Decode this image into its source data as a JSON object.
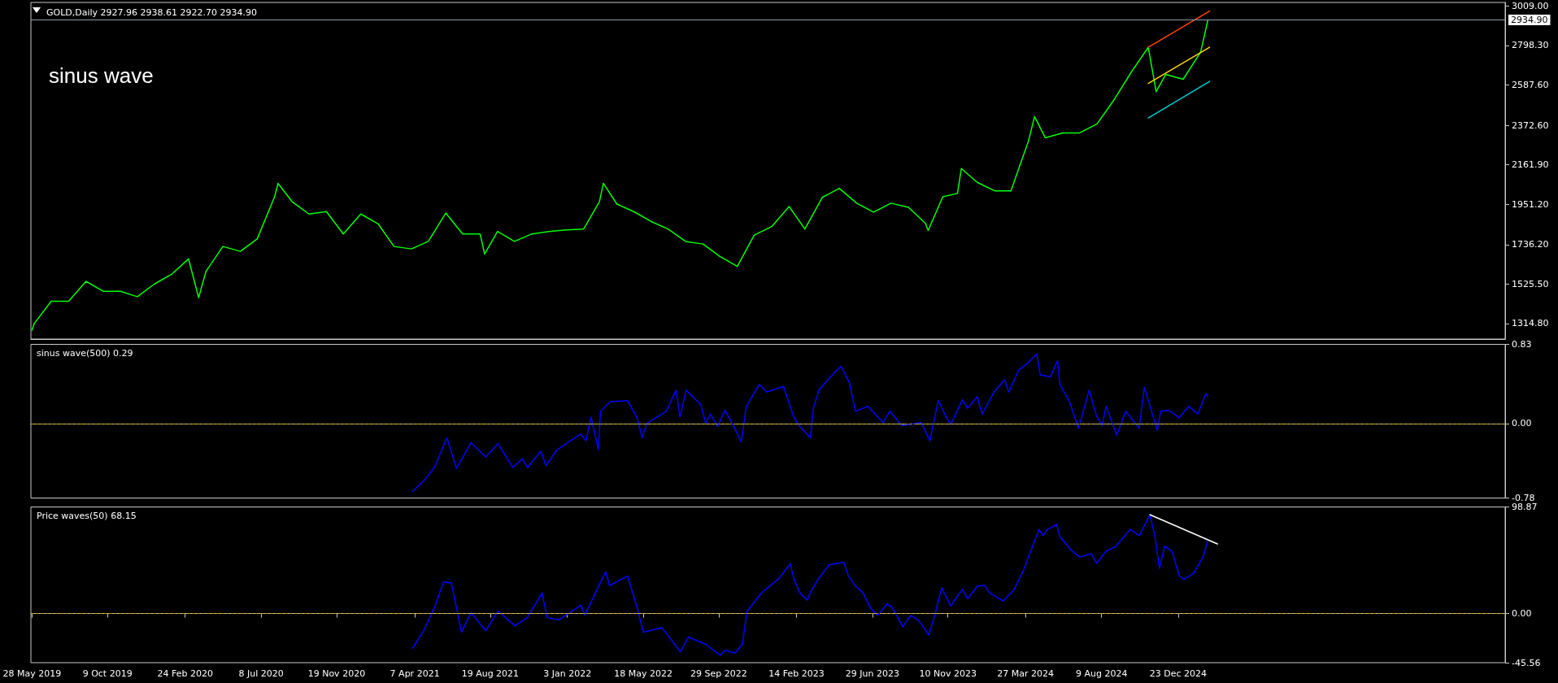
{
  "chart_data": [
    {
      "type": "line",
      "title": "GOLD,Daily 2927.96 2938.61 2922.70 2934.90",
      "annotations": [
        "sinus wave"
      ],
      "marker": "none",
      "tick_labels": "y",
      "xlim": [
        "2019-05-26",
        "2026-07-27"
      ],
      "ylim": [
        1232,
        3028
      ],
      "yticks": [
        {
          "value": 3009,
          "label": "3009.00"
        },
        {
          "value": 2798.3,
          "label": "2798.30"
        },
        {
          "value": 2587.6,
          "label": "2587.60"
        },
        {
          "value": 2372.6,
          "label": "2372.60"
        },
        {
          "value": 2161.9,
          "label": "2161.90"
        },
        {
          "value": 1951.2,
          "label": "1951.20"
        },
        {
          "value": 1736.2,
          "label": "1736.20"
        },
        {
          "value": 1525.5,
          "label": "1525.50"
        },
        {
          "value": 1314.8,
          "label": "1314.80"
        }
      ],
      "ref_lines": [
        {
          "axis": "y",
          "value": 2934.9,
          "label": "2934.90",
          "color": "#8c9aa8",
          "line_style": "solid"
        }
      ],
      "series": [
        {
          "color": "#00ff00",
          "x": [
            "2019-05-28",
            "2019-06-01",
            "2019-07-01",
            "2019-08-01",
            "2019-09-01",
            "2019-10-01",
            "2019-11-01",
            "2019-12-01",
            "2020-01-01",
            "2020-02-01",
            "2020-03-01",
            "2020-03-19",
            "2020-04-01",
            "2020-05-01",
            "2020-06-01",
            "2020-07-01",
            "2020-08-01",
            "2020-08-07",
            "2020-09-01",
            "2020-10-01",
            "2020-11-01",
            "2020-12-01",
            "2021-01-01",
            "2021-02-01",
            "2021-03-01",
            "2021-04-01",
            "2021-05-01",
            "2021-06-01",
            "2021-07-01",
            "2021-08-01",
            "2021-08-09",
            "2021-09-01",
            "2021-10-01",
            "2021-11-01",
            "2021-12-01",
            "2022-01-01",
            "2022-02-01",
            "2022-03-01",
            "2022-03-08",
            "2022-04-01",
            "2022-05-01",
            "2022-06-01",
            "2022-07-01",
            "2022-08-01",
            "2022-09-01",
            "2022-10-01",
            "2022-11-01",
            "2022-12-01",
            "2023-01-01",
            "2023-02-01",
            "2023-03-01",
            "2023-04-01",
            "2023-05-01",
            "2023-06-01",
            "2023-07-01",
            "2023-08-01",
            "2023-09-01",
            "2023-10-01",
            "2023-10-06",
            "2023-11-01",
            "2023-11-27",
            "2023-12-04",
            "2024-01-01",
            "2024-02-01",
            "2024-03-01",
            "2024-04-01",
            "2024-04-12",
            "2024-05-01",
            "2024-06-01",
            "2024-07-01",
            "2024-08-01",
            "2024-09-01",
            "2024-10-01",
            "2024-10-31",
            "2024-11-14",
            "2024-12-01",
            "2025-01-01",
            "2025-02-01",
            "2025-02-14"
          ],
          "values": [
            1280,
            1315,
            1434,
            1434,
            1540,
            1487,
            1487,
            1458,
            1527,
            1580,
            1660,
            1453,
            1593,
            1726,
            1700,
            1766,
            1992,
            2063,
            1965,
            1899,
            1912,
            1793,
            1899,
            1846,
            1726,
            1713,
            1753,
            1904,
            1793,
            1793,
            1686,
            1806,
            1753,
            1793,
            1806,
            1814,
            1819,
            1965,
            2063,
            1952,
            1912,
            1859,
            1819,
            1753,
            1739,
            1673,
            1620,
            1787,
            1832,
            1939,
            1819,
            1988,
            2036,
            1957,
            1909,
            1957,
            1935,
            1850,
            1811,
            1991,
            2009,
            2142,
            2068,
            2023,
            2023,
            2287,
            2419,
            2306,
            2332,
            2332,
            2380,
            2512,
            2657,
            2789,
            2552,
            2644,
            2618,
            2763,
            2934.9
          ]
        },
        {
          "color": "#ff4500",
          "x": [
            "2024-10-31",
            "2025-02-17"
          ],
          "values": [
            2789,
            2982
          ]
        },
        {
          "color": "#ffd700",
          "x": [
            "2024-10-31",
            "2025-02-17"
          ],
          "values": [
            2596,
            2789
          ]
        },
        {
          "color": "#00ced1",
          "x": [
            "2024-10-31",
            "2025-02-17"
          ],
          "values": [
            2411,
            2607
          ]
        }
      ]
    },
    {
      "type": "line",
      "title": "sinus wave(500) 0.29",
      "marker": "none",
      "tick_labels": "y",
      "xlim": [
        "2019-05-26",
        "2026-07-27"
      ],
      "ylim": [
        -0.78,
        0.83
      ],
      "yticks": [
        0.83,
        {
          "value": 0,
          "label": "0.00"
        },
        -0.78
      ],
      "ref_lines": [
        {
          "axis": "y",
          "value": 0,
          "color": "#c8a000",
          "line_style": "dashed"
        }
      ],
      "series": [
        {
          "color": "#0000ff",
          "x": [
            "2021-04-03",
            "2021-04-23",
            "2021-05-12",
            "2021-06-03",
            "2021-06-20",
            "2021-07-16",
            "2021-08-11",
            "2021-09-02",
            "2021-09-28",
            "2021-10-15",
            "2021-10-24",
            "2021-11-17",
            "2021-11-26",
            "2021-12-15",
            "2022-01-06",
            "2022-01-27",
            "2022-02-05",
            "2022-02-14",
            "2022-02-27",
            "2022-03-03",
            "2022-03-20",
            "2022-04-20",
            "2022-05-07",
            "2022-05-16",
            "2022-05-24",
            "2022-06-28",
            "2022-07-15",
            "2022-07-22",
            "2022-08-02",
            "2022-08-28",
            "2022-09-06",
            "2022-09-14",
            "2022-09-27",
            "2022-10-10",
            "2022-10-23",
            "2022-11-08",
            "2022-11-17",
            "2022-12-10",
            "2022-12-23",
            "2023-01-22",
            "2023-02-09",
            "2023-02-20",
            "2023-03-11",
            "2023-03-16",
            "2023-03-26",
            "2023-04-14",
            "2023-05-04",
            "2023-05-19",
            "2023-05-30",
            "2023-06-21",
            "2023-07-18",
            "2023-07-30",
            "2023-08-20",
            "2023-09-24",
            "2023-10-09",
            "2023-10-24",
            "2023-11-06",
            "2023-11-15",
            "2023-12-06",
            "2023-12-15",
            "2024-01-01",
            "2024-01-10",
            "2024-01-31",
            "2024-02-19",
            "2024-02-26",
            "2024-03-15",
            "2024-04-01",
            "2024-04-16",
            "2024-04-22",
            "2024-05-10",
            "2024-05-23",
            "2024-05-27",
            "2024-06-13",
            "2024-06-29",
            "2024-07-18",
            "2024-07-31",
            "2024-08-10",
            "2024-08-17",
            "2024-09-05",
            "2024-09-21",
            "2024-10-15",
            "2024-10-24",
            "2024-11-16",
            "2024-11-22",
            "2024-12-06",
            "2024-12-25",
            "2025-01-11",
            "2025-01-27",
            "2025-02-10",
            "2025-02-14"
          ],
          "values": [
            -0.71,
            -0.6,
            -0.46,
            -0.15,
            -0.47,
            -0.2,
            -0.35,
            -0.21,
            -0.46,
            -0.37,
            -0.46,
            -0.29,
            -0.44,
            -0.28,
            -0.19,
            -0.11,
            -0.18,
            0.07,
            -0.27,
            0.13,
            0.23,
            0.24,
            0.06,
            -0.15,
            0,
            0.13,
            0.35,
            0.07,
            0.35,
            0.2,
            0,
            0.1,
            -0.03,
            0.14,
            0,
            -0.19,
            0.18,
            0.41,
            0.33,
            0.39,
            0.07,
            -0.03,
            -0.15,
            0.16,
            0.35,
            0.48,
            0.6,
            0.43,
            0.13,
            0.18,
            0.01,
            0.13,
            -0.02,
            0.01,
            -0.18,
            0.24,
            0.08,
            -0.01,
            0.25,
            0.16,
            0.28,
            0.1,
            0.33,
            0.46,
            0.33,
            0.56,
            0.64,
            0.73,
            0.51,
            0.49,
            0.66,
            0.41,
            0.23,
            -0.05,
            0.35,
            0.08,
            -0.02,
            0.18,
            -0.12,
            0.13,
            -0.05,
            0.38,
            -0.07,
            0.13,
            0.14,
            0.06,
            0.18,
            0.1,
            0.31,
            0.29
          ]
        }
      ]
    },
    {
      "type": "line",
      "title": "Price waves(50) 68.15",
      "marker": "none",
      "xlim": [
        "2019-05-26",
        "2026-07-27"
      ],
      "xticks": [
        {
          "value": "2019-05-28",
          "label": "28 May 2019"
        },
        {
          "value": "2019-10-09",
          "label": "9 Oct 2019"
        },
        {
          "value": "2020-02-24",
          "label": "24 Feb 2020"
        },
        {
          "value": "2020-07-08",
          "label": "8 Jul 2020"
        },
        {
          "value": "2020-11-19",
          "label": "19 Nov 2020"
        },
        {
          "value": "2021-04-07",
          "label": "7 Apr 2021"
        },
        {
          "value": "2021-08-19",
          "label": "19 Aug 2021"
        },
        {
          "value": "2022-01-03",
          "label": "3 Jan 2022"
        },
        {
          "value": "2022-05-18",
          "label": "18 May 2022"
        },
        {
          "value": "2022-09-29",
          "label": "29 Sep 2022"
        },
        {
          "value": "2023-02-14",
          "label": "14 Feb 2023"
        },
        {
          "value": "2023-06-29",
          "label": "29 Jun 2023"
        },
        {
          "value": "2023-11-10",
          "label": "10 Nov 2023"
        },
        {
          "value": "2024-03-27",
          "label": "27 Mar 2024"
        },
        {
          "value": "2024-08-09",
          "label": "9 Aug 2024"
        },
        {
          "value": "2024-12-23",
          "label": "23 Dec 2024"
        }
      ],
      "ylim": [
        -45.56,
        98.87
      ],
      "yticks": [
        98.87,
        {
          "value": 0,
          "label": "0.00"
        },
        -45.56
      ],
      "ref_lines": [
        {
          "axis": "y",
          "value": 0,
          "color": "#c8a000",
          "line_style": "dashed"
        }
      ],
      "series": [
        {
          "color": "#0000ff",
          "x": [
            "2021-04-03",
            "2021-04-23",
            "2021-05-12",
            "2021-05-28",
            "2021-06-11",
            "2021-06-29",
            "2021-07-16",
            "2021-08-11",
            "2021-09-02",
            "2021-10-02",
            "2021-10-24",
            "2021-11-19",
            "2021-11-28",
            "2021-12-19",
            "2022-01-27",
            "2022-02-03",
            "2022-03-12",
            "2022-03-19",
            "2022-04-20",
            "2022-05-07",
            "2022-05-18",
            "2022-06-20",
            "2022-07-23",
            "2022-08-06",
            "2022-09-06",
            "2022-10-02",
            "2022-10-10",
            "2022-10-28",
            "2022-11-10",
            "2022-11-18",
            "2022-12-14",
            "2023-01-14",
            "2023-02-03",
            "2023-02-09",
            "2023-02-20",
            "2023-03-05",
            "2023-03-13",
            "2023-03-26",
            "2023-04-13",
            "2023-05-09",
            "2023-05-17",
            "2023-05-30",
            "2023-06-12",
            "2023-06-25",
            "2023-07-08",
            "2023-07-25",
            "2023-08-03",
            "2023-08-22",
            "2023-09-05",
            "2023-09-19",
            "2023-10-07",
            "2023-10-18",
            "2023-10-30",
            "2023-11-15",
            "2023-12-06",
            "2023-12-15",
            "2024-01-01",
            "2024-01-14",
            "2024-01-23",
            "2024-02-16",
            "2024-03-06",
            "2024-03-23",
            "2024-04-10",
            "2024-04-20",
            "2024-04-27",
            "2024-05-05",
            "2024-05-21",
            "2024-05-27",
            "2024-06-18",
            "2024-07-01",
            "2024-07-22",
            "2024-07-31",
            "2024-08-17",
            "2024-09-03",
            "2024-09-29",
            "2024-10-15",
            "2024-11-03",
            "2024-11-12",
            "2024-11-20",
            "2024-11-29",
            "2024-12-12",
            "2024-12-25",
            "2025-01-02",
            "2025-01-20",
            "2025-02-06",
            "2025-02-14"
          ],
          "values": [
            -32.2,
            -15.9,
            5.4,
            29.4,
            28.1,
            -17.2,
            0.9,
            -15.9,
            2.3,
            -11.3,
            -3.6,
            19.1,
            -3.6,
            -5.9,
            7.7,
            -1.4,
            38.6,
            25.9,
            34.9,
            5.4,
            -17.2,
            -13.2,
            -35.4,
            -21.8,
            -28.6,
            -38.6,
            -34,
            -36.7,
            -28.6,
            1.9,
            19.1,
            32.6,
            46.3,
            32.6,
            19.4,
            12.6,
            21.7,
            32.9,
            45.1,
            47.8,
            35.2,
            25.3,
            19.4,
            5.8,
            -1.8,
            9,
            5.8,
            -12.2,
            -1.8,
            -6.3,
            -19.9,
            -0.9,
            23.9,
            7.2,
            22.6,
            13.5,
            25.3,
            26.2,
            19.4,
            11.7,
            21.7,
            39.7,
            64.6,
            78.1,
            72.2,
            78.1,
            82.6,
            71.3,
            57.8,
            52.4,
            55.5,
            46.5,
            57.8,
            62.3,
            78.1,
            72.2,
            91.7,
            71.3,
            42,
            62.3,
            57.8,
            35.2,
            31.6,
            37.5,
            53.3,
            68.15
          ]
        },
        {
          "color": "#ffffff",
          "x": [
            "2024-11-03",
            "2025-03-03"
          ],
          "values": [
            91.7,
            64.6
          ]
        }
      ]
    }
  ]
}
